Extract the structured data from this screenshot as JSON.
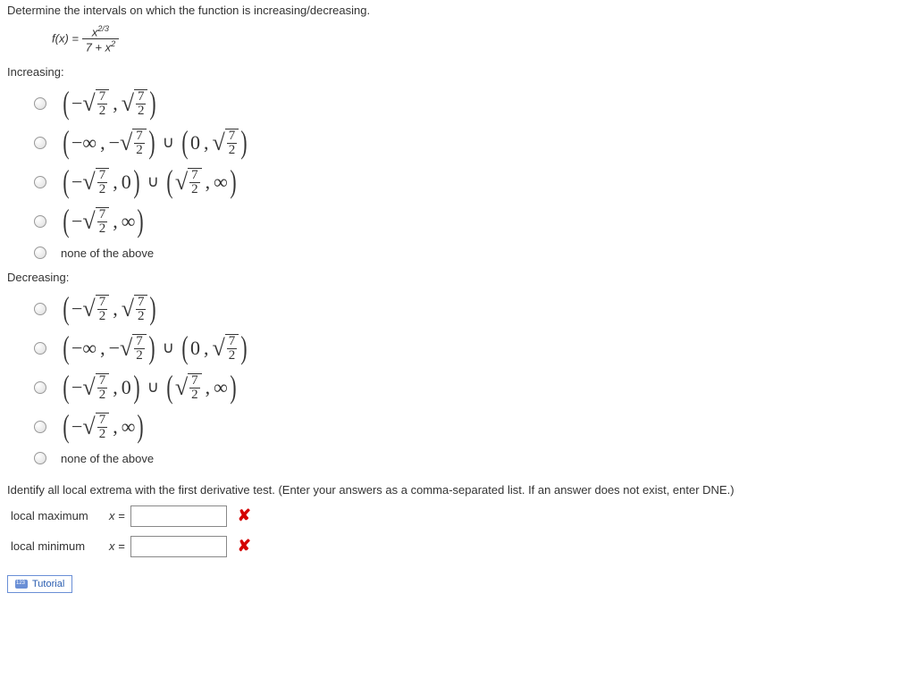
{
  "question": "Determine the intervals on which the function is increasing/decreasing.",
  "function_lhs": "f(x) = ",
  "function_num": "x",
  "function_num_exp": "2/3",
  "function_den_a": "7 + x",
  "function_den_exp": "2",
  "increasing_label": "Increasing:",
  "decreasing_label": "Decreasing:",
  "frac_n": "7",
  "frac_d": "2",
  "zero": "0",
  "inf": "∞",
  "ninf": "−∞",
  "none_label": "none of the above",
  "extrema_instruction": "Identify all local extrema with the first derivative test. (Enter your answers as a comma-separated list. If an answer does not exist, enter DNE.)",
  "local_max_label": "local maximum",
  "local_min_label": "local minimum",
  "x_eq": "x =",
  "tutorial_label": "Tutorial",
  "colors": {
    "text": "#333333",
    "wrong": "#d40000",
    "link": "#2a5db0",
    "border": "#6a8fd6"
  }
}
